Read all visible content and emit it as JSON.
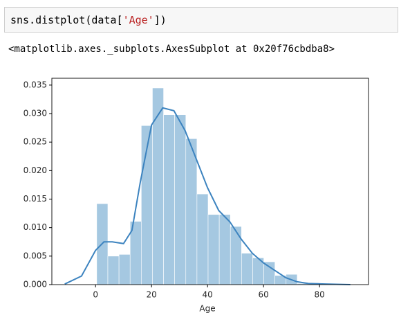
{
  "code": {
    "parts": [
      "sns.distplot(data[",
      "'Age'",
      "])"
    ]
  },
  "output": "<matplotlib.axes._subplots.AxesSubplot at 0x20f76cbdba8>",
  "chart_data": {
    "type": "histogram",
    "xlabel": "Age",
    "bins": [
      0.42,
      4.4,
      8.38,
      12.36,
      16.34,
      20.32,
      24.3,
      28.27,
      32.25,
      36.23,
      40.21,
      44.19,
      48.17,
      52.15,
      56.13,
      60.11,
      64.08,
      68.06,
      72.04,
      76.02,
      80.0
    ],
    "counts": [
      0.0142,
      0.005,
      0.0053,
      0.0111,
      0.0279,
      0.0345,
      0.0298,
      0.0298,
      0.0256,
      0.0159,
      0.0123,
      0.0123,
      0.0102,
      0.0055,
      0.0047,
      0.004,
      0.0016,
      0.0018,
      0.0002,
      0.0003
    ],
    "color": "#a5c8e1",
    "kde": {
      "color": "#3c83bf",
      "x": [
        -11,
        -5,
        0,
        3,
        6,
        10,
        13,
        16,
        20,
        24,
        28,
        32,
        36,
        40,
        44,
        48,
        52,
        56,
        60,
        64,
        68,
        72,
        76,
        82,
        91
      ],
      "values": [
        0.0001,
        0.0015,
        0.006,
        0.0075,
        0.0075,
        0.0072,
        0.0095,
        0.018,
        0.028,
        0.031,
        0.0305,
        0.027,
        0.022,
        0.017,
        0.013,
        0.011,
        0.008,
        0.0055,
        0.0038,
        0.0025,
        0.0012,
        0.0005,
        0.0002,
        0.0001,
        0.0
      ]
    },
    "xlim": [
      -15.6,
      97.5
    ],
    "ylim": [
      0,
      0.0362
    ],
    "xticks": [
      0,
      20,
      40,
      60,
      80
    ],
    "yticks": [
      {
        "value": 0,
        "label": "0.000"
      },
      {
        "value": 0.005,
        "label": "0.005"
      },
      {
        "value": 0.01,
        "label": "0.010"
      },
      {
        "value": 0.015,
        "label": "0.015"
      },
      {
        "value": 0.02,
        "label": "0.020"
      },
      {
        "value": 0.025,
        "label": "0.025"
      },
      {
        "value": 0.03,
        "label": "0.030"
      },
      {
        "value": 0.035,
        "label": "0.035"
      }
    ]
  }
}
